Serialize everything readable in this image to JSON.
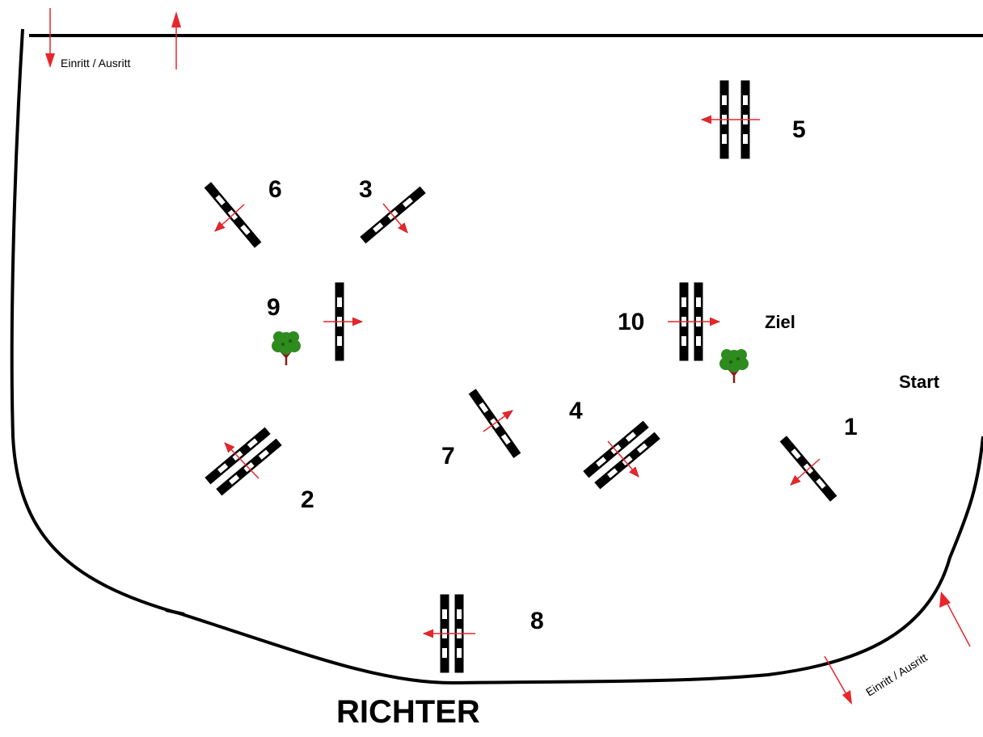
{
  "labels": {
    "entry_exit_top": "Einritt / Ausritt",
    "entry_exit_bottom": "Einritt / Ausritt",
    "judge": "RICHTER",
    "finish": "Ziel",
    "start": "Start"
  },
  "obstacles": [
    {
      "number": "1",
      "type": "single"
    },
    {
      "number": "2",
      "type": "oxer"
    },
    {
      "number": "3",
      "type": "single"
    },
    {
      "number": "4",
      "type": "oxer"
    },
    {
      "number": "5",
      "type": "oxer"
    },
    {
      "number": "6",
      "type": "single"
    },
    {
      "number": "7",
      "type": "single"
    },
    {
      "number": "8",
      "type": "oxer"
    },
    {
      "number": "9",
      "type": "single"
    },
    {
      "number": "10",
      "type": "oxer"
    }
  ],
  "colors": {
    "arena_line": "#000000",
    "arrow": "#e8262b",
    "tree_foliage": "#2e8b1e",
    "tree_trunk": "#8b1a1a",
    "pole_dark": "#000000",
    "pole_light": "#ffffff"
  },
  "icons": [
    "tree-icon",
    "arrow-icon",
    "jump-obstacle-icon"
  ]
}
